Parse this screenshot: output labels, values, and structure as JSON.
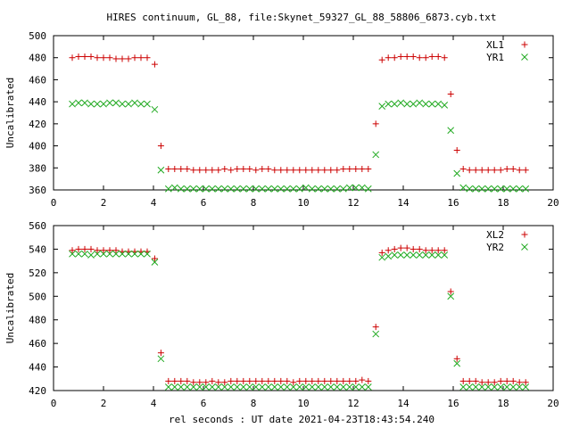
{
  "title": "HIRES continuum, GL_88, file:Skynet_59327_GL_88_58806_6873.cyb.txt",
  "xlabel": "rel seconds : UT date 2021-04-23T18:43:54.240",
  "colors": {
    "plus": "#cc0000",
    "cross": "#22aa22",
    "axis": "#000000"
  },
  "chart_data": [
    {
      "type": "scatter",
      "ylabel": "Uncalibrated",
      "xlim": [
        0,
        20
      ],
      "ylim": [
        360,
        500
      ],
      "xticks": [
        0,
        2,
        4,
        6,
        8,
        10,
        12,
        14,
        16,
        18,
        20
      ],
      "yticks": [
        360,
        380,
        400,
        420,
        440,
        460,
        480,
        500
      ],
      "legend": "top-right",
      "series": [
        {
          "name": "XL1",
          "marker": "plus",
          "x": [
            0.75,
            1.0,
            1.25,
            1.5,
            1.75,
            2.0,
            2.25,
            2.5,
            2.75,
            3.0,
            3.25,
            3.5,
            3.75,
            4.05,
            4.3,
            4.6,
            4.85,
            5.1,
            5.35,
            5.6,
            5.85,
            6.1,
            6.35,
            6.6,
            6.85,
            7.1,
            7.35,
            7.6,
            7.85,
            8.1,
            8.35,
            8.6,
            8.85,
            9.1,
            9.35,
            9.6,
            9.85,
            10.1,
            10.35,
            10.6,
            10.85,
            11.1,
            11.35,
            11.6,
            11.85,
            12.1,
            12.35,
            12.6,
            12.9,
            13.15,
            13.4,
            13.65,
            13.9,
            14.15,
            14.4,
            14.65,
            14.9,
            15.15,
            15.4,
            15.65,
            15.9,
            16.15,
            16.4,
            16.65,
            16.9,
            17.15,
            17.4,
            17.65,
            17.9,
            18.15,
            18.4,
            18.65,
            18.9
          ],
          "y": [
            480,
            481,
            481,
            481,
            480,
            480,
            480,
            479,
            479,
            479,
            480,
            480,
            480,
            474,
            400,
            379,
            379,
            379,
            379,
            378,
            378,
            378,
            378,
            378,
            379,
            378,
            379,
            379,
            379,
            378,
            379,
            379,
            378,
            378,
            378,
            378,
            378,
            378,
            378,
            378,
            378,
            378,
            378,
            379,
            379,
            379,
            379,
            379,
            420,
            478,
            480,
            480,
            481,
            481,
            481,
            480,
            480,
            481,
            481,
            480,
            447,
            396,
            379,
            378,
            378,
            378,
            378,
            378,
            378,
            379,
            379,
            378,
            378
          ]
        },
        {
          "name": "YR1",
          "marker": "cross",
          "x": [
            0.75,
            1.0,
            1.25,
            1.5,
            1.75,
            2.0,
            2.25,
            2.5,
            2.75,
            3.0,
            3.25,
            3.5,
            3.75,
            4.05,
            4.3,
            4.6,
            4.85,
            5.1,
            5.35,
            5.6,
            5.85,
            6.1,
            6.35,
            6.6,
            6.85,
            7.1,
            7.35,
            7.6,
            7.85,
            8.1,
            8.35,
            8.6,
            8.85,
            9.1,
            9.35,
            9.6,
            9.85,
            10.1,
            10.35,
            10.6,
            10.85,
            11.1,
            11.35,
            11.6,
            11.85,
            12.1,
            12.35,
            12.6,
            12.9,
            13.15,
            13.4,
            13.65,
            13.9,
            14.15,
            14.4,
            14.65,
            14.9,
            15.15,
            15.4,
            15.65,
            15.9,
            16.15,
            16.4,
            16.65,
            16.9,
            17.15,
            17.4,
            17.65,
            17.9,
            18.15,
            18.4,
            18.65,
            18.9
          ],
          "y": [
            438,
            439,
            439,
            438,
            438,
            438,
            439,
            439,
            438,
            438,
            439,
            438,
            438,
            433,
            378,
            361,
            362,
            361,
            361,
            361,
            361,
            361,
            361,
            361,
            361,
            361,
            361,
            361,
            361,
            361,
            361,
            361,
            361,
            361,
            361,
            361,
            361,
            362,
            361,
            361,
            361,
            361,
            361,
            361,
            362,
            362,
            362,
            361,
            392,
            436,
            438,
            438,
            439,
            438,
            438,
            439,
            438,
            438,
            438,
            437,
            414,
            375,
            362,
            361,
            361,
            361,
            361,
            361,
            361,
            361,
            361,
            361,
            361
          ]
        }
      ]
    },
    {
      "type": "scatter",
      "ylabel": "Uncalibrated",
      "xlim": [
        0,
        20
      ],
      "ylim": [
        420,
        560
      ],
      "xticks": [
        0,
        2,
        4,
        6,
        8,
        10,
        12,
        14,
        16,
        18,
        20
      ],
      "yticks": [
        420,
        440,
        460,
        480,
        500,
        520,
        540,
        560
      ],
      "legend": "top-right",
      "series": [
        {
          "name": "XL2",
          "marker": "plus",
          "x": [
            0.75,
            1.0,
            1.25,
            1.5,
            1.75,
            2.0,
            2.25,
            2.5,
            2.75,
            3.0,
            3.25,
            3.5,
            3.75,
            4.05,
            4.3,
            4.6,
            4.85,
            5.1,
            5.35,
            5.6,
            5.85,
            6.1,
            6.35,
            6.6,
            6.85,
            7.1,
            7.35,
            7.6,
            7.85,
            8.1,
            8.35,
            8.6,
            8.85,
            9.1,
            9.35,
            9.6,
            9.85,
            10.1,
            10.35,
            10.6,
            10.85,
            11.1,
            11.35,
            11.6,
            11.85,
            12.1,
            12.35,
            12.6,
            12.9,
            13.15,
            13.4,
            13.65,
            13.9,
            14.15,
            14.4,
            14.65,
            14.9,
            15.15,
            15.4,
            15.65,
            15.9,
            16.15,
            16.4,
            16.65,
            16.9,
            17.15,
            17.4,
            17.65,
            17.9,
            18.15,
            18.4,
            18.65,
            18.9
          ],
          "y": [
            539,
            540,
            540,
            540,
            539,
            539,
            539,
            539,
            538,
            538,
            538,
            538,
            538,
            532,
            452,
            428,
            428,
            428,
            428,
            427,
            427,
            427,
            428,
            427,
            427,
            428,
            428,
            428,
            428,
            428,
            428,
            428,
            428,
            428,
            428,
            427,
            428,
            428,
            428,
            428,
            428,
            428,
            428,
            428,
            428,
            428,
            429,
            428,
            474,
            537,
            539,
            540,
            541,
            541,
            540,
            540,
            539,
            539,
            539,
            539,
            504,
            447,
            428,
            428,
            428,
            427,
            427,
            427,
            428,
            428,
            428,
            427,
            427
          ]
        },
        {
          "name": "YR2",
          "marker": "cross",
          "x": [
            0.75,
            1.0,
            1.25,
            1.5,
            1.75,
            2.0,
            2.25,
            2.5,
            2.75,
            3.0,
            3.25,
            3.5,
            3.75,
            4.05,
            4.3,
            4.6,
            4.85,
            5.1,
            5.35,
            5.6,
            5.85,
            6.1,
            6.35,
            6.6,
            6.85,
            7.1,
            7.35,
            7.6,
            7.85,
            8.1,
            8.35,
            8.6,
            8.85,
            9.1,
            9.35,
            9.6,
            9.85,
            10.1,
            10.35,
            10.6,
            10.85,
            11.1,
            11.35,
            11.6,
            11.85,
            12.1,
            12.35,
            12.6,
            12.9,
            13.15,
            13.4,
            13.65,
            13.9,
            14.15,
            14.4,
            14.65,
            14.9,
            15.15,
            15.4,
            15.65,
            15.9,
            16.15,
            16.4,
            16.65,
            16.9,
            17.15,
            17.4,
            17.65,
            17.9,
            18.15,
            18.4,
            18.65,
            18.9
          ],
          "y": [
            536,
            536,
            536,
            535,
            536,
            536,
            536,
            536,
            536,
            536,
            536,
            536,
            536,
            529,
            447,
            423,
            423,
            423,
            423,
            423,
            423,
            423,
            423,
            423,
            423,
            423,
            423,
            423,
            423,
            423,
            423,
            423,
            423,
            423,
            423,
            423,
            423,
            423,
            423,
            423,
            423,
            423,
            423,
            423,
            423,
            423,
            423,
            423,
            468,
            533,
            534,
            535,
            535,
            535,
            535,
            535,
            535,
            535,
            535,
            535,
            500,
            443,
            423,
            423,
            423,
            423,
            423,
            423,
            423,
            423,
            423,
            423,
            423
          ]
        }
      ]
    }
  ]
}
